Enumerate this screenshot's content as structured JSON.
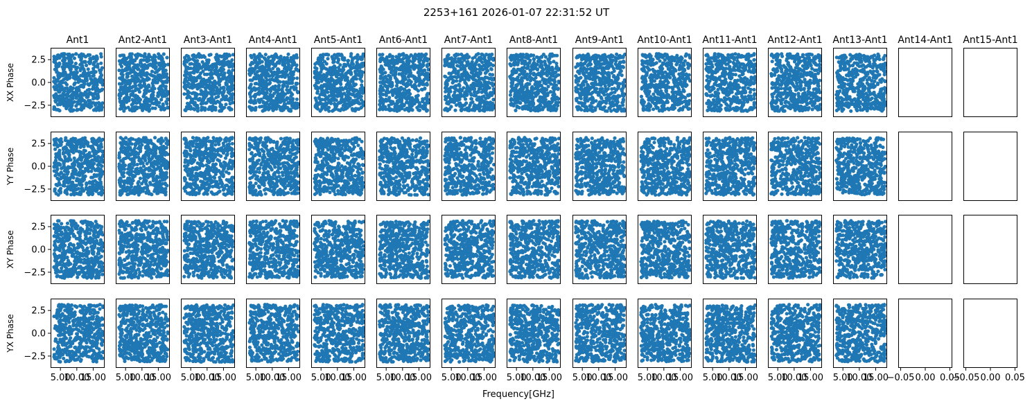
{
  "figure": {
    "title": "2253+161 2026-01-07 22:31:52 UT",
    "xlabel": "Frequency[GHz]"
  },
  "colors": {
    "marker": "#1f77b4",
    "axes": "#000000",
    "background": "#ffffff"
  },
  "chart_data": {
    "type": "scatter",
    "layout": "grid 4 rows x 15 columns",
    "columns": [
      "Ant1",
      "Ant2-Ant1",
      "Ant3-Ant1",
      "Ant4-Ant1",
      "Ant5-Ant1",
      "Ant6-Ant1",
      "Ant7-Ant1",
      "Ant8-Ant1",
      "Ant9-Ant1",
      "Ant10-Ant1",
      "Ant11-Ant1",
      "Ant12-Ant1",
      "Ant13-Ant1",
      "Ant14-Ant1",
      "Ant15-Ant1"
    ],
    "rows": [
      "XX Phase",
      "YY Phase",
      "XY Phase",
      "YX Phase"
    ],
    "xlim": [
      2.0,
      18.5
    ],
    "ylim": [
      -3.8,
      3.8
    ],
    "yticks": [
      -2.5,
      0.0,
      2.5
    ],
    "ytick_labels": [
      "−2.5",
      "0.0",
      "2.5"
    ],
    "xticks": [
      5.0,
      10.0,
      15.0
    ],
    "xtick_labels": [
      "5.00",
      "10.00",
      "15.00"
    ],
    "empty_columns": [
      13,
      14
    ],
    "empty_xlim": [
      -0.055,
      0.055
    ],
    "empty_xticks": [
      -0.05,
      0.0,
      0.05
    ],
    "empty_xtick_labels": [
      "−0.05",
      "0.00",
      "0.05"
    ],
    "series_note": "random phases uniformly distributed in [-pi, pi]",
    "points_per_panel": 500,
    "x_range": [
      3.0,
      18.0
    ],
    "y_range": [
      -3.1416,
      3.1416
    ],
    "grid": false,
    "legend": "none"
  }
}
